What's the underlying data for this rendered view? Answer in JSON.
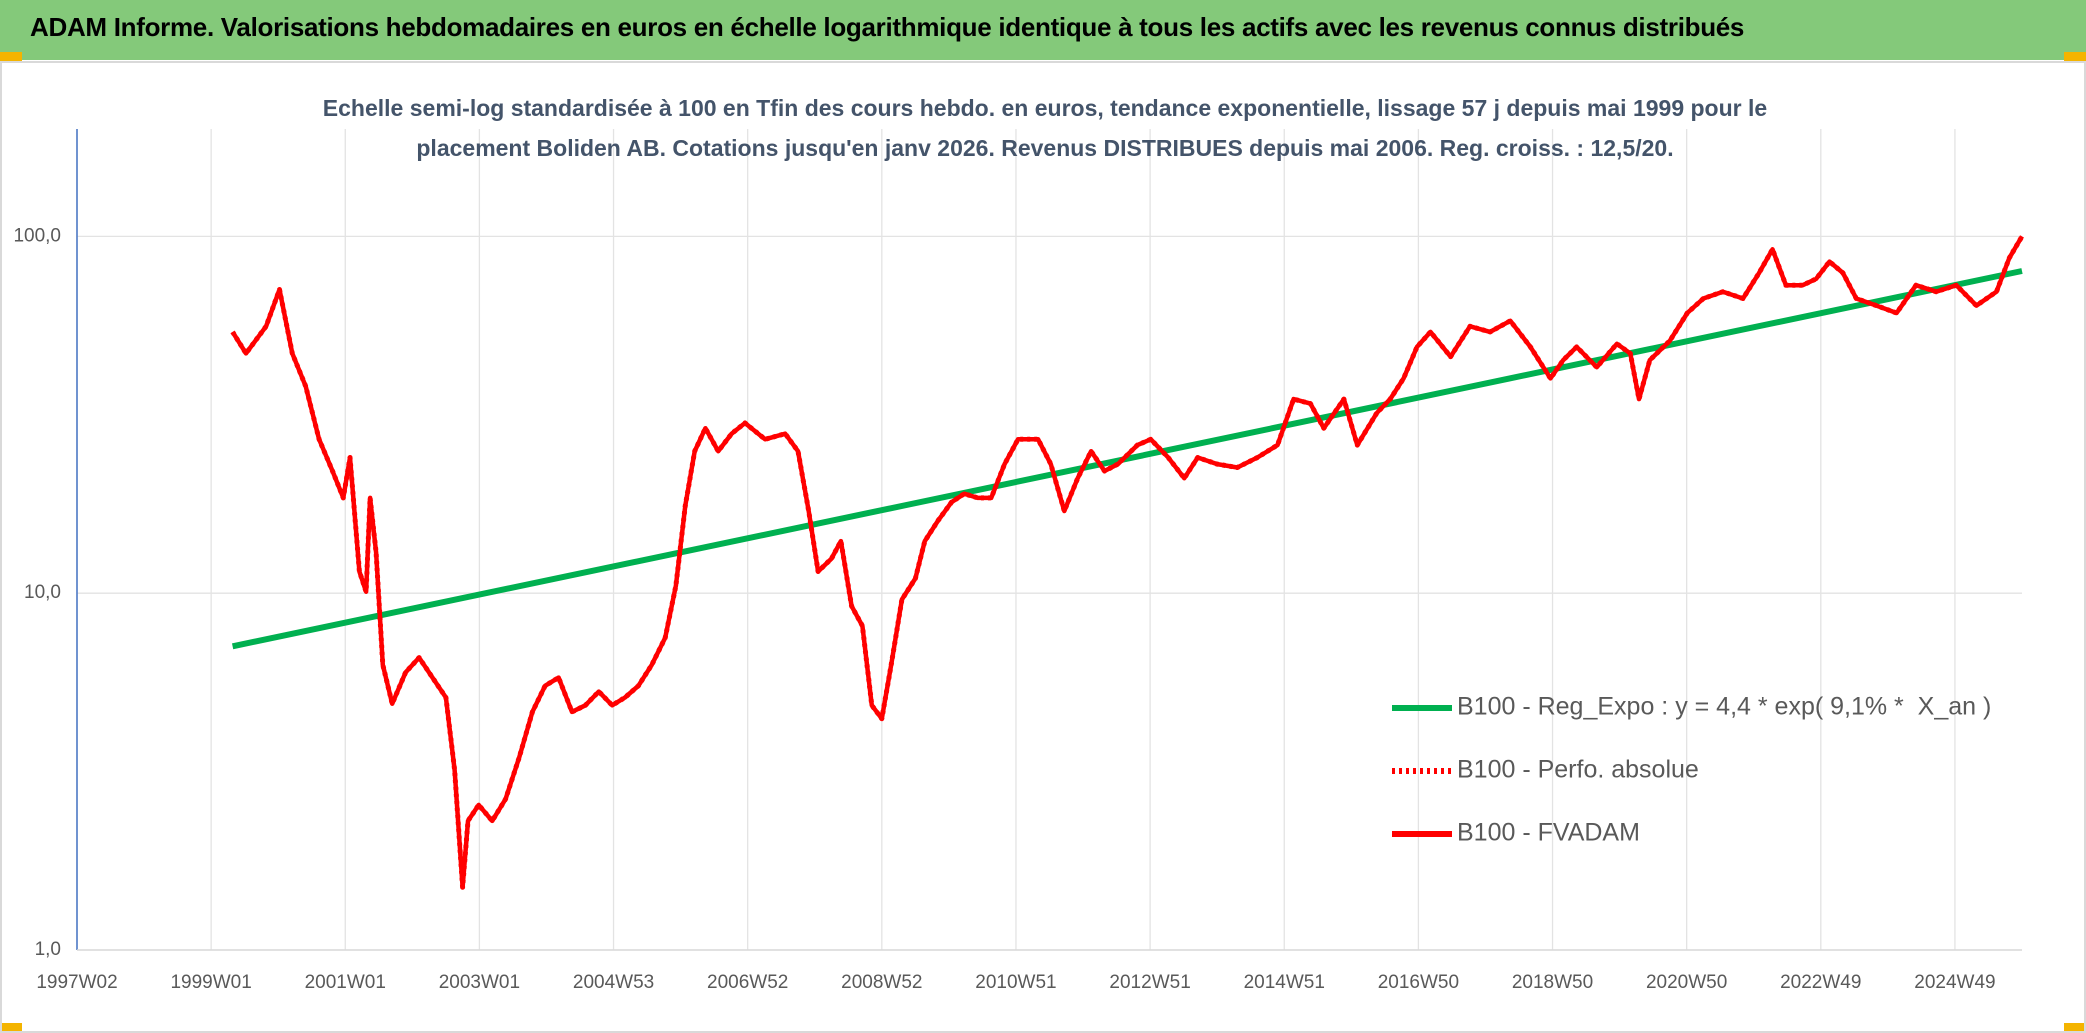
{
  "chart_data": {
    "type": "line",
    "title": "ADAM Informe. Valorisations hebdomadaires en euros en échelle logarithmique identique à tous les actifs avec les revenus connus distribués",
    "subtitle": "Echelle semi-log standardisée à 100 en Tfin des cours hebdo. en euros, tendance exponentielle, lissage 57 j depuis mai 1999 pour le placement Boliden AB. Cotations jusqu'en janv 2026. Revenus DISTRIBUES depuis mai 2006. Reg. croiss. : 12,5/20.",
    "log_scale": true,
    "grid": true,
    "legend": "right",
    "xlim": [
      1997,
      2026
    ],
    "xticks": [
      {
        "value": 1997.0,
        "label": "1997W02"
      },
      {
        "value": 1999.0,
        "label": "1999W01"
      },
      {
        "value": 2001.0,
        "label": "2001W01"
      },
      {
        "value": 2003.0,
        "label": "2003W01"
      },
      {
        "value": 2005.0,
        "label": "2004W53"
      },
      {
        "value": 2007.0,
        "label": "2006W52"
      },
      {
        "value": 2009.0,
        "label": "2008W52"
      },
      {
        "value": 2011.0,
        "label": "2010W51"
      },
      {
        "value": 2013.0,
        "label": "2012W51"
      },
      {
        "value": 2015.0,
        "label": "2014W51"
      },
      {
        "value": 2017.0,
        "label": "2016W50"
      },
      {
        "value": 2019.0,
        "label": "2018W50"
      },
      {
        "value": 2021.0,
        "label": "2020W50"
      },
      {
        "value": 2023.0,
        "label": "2022W49"
      },
      {
        "value": 2025.0,
        "label": "2024W49"
      }
    ],
    "ylim": [
      1,
      200
    ],
    "yticks": [
      {
        "value": 1,
        "label": "1,0"
      },
      {
        "value": 10,
        "label": "10,0"
      },
      {
        "value": 100,
        "label": "100,0"
      }
    ],
    "series": [
      {
        "name": "B100 - Reg_Expo : y = 4,4 * exp( 9,1% *  X_an )",
        "color": "#00b050",
        "style": "solid",
        "x": [
          1999.32,
          2026.0
        ],
        "values": [
          7.1,
          80
        ]
      },
      {
        "name": "B100 - Perfo. absolue",
        "color": "#ff0000",
        "style": "dotted",
        "x": [
          1999.32,
          1999.52,
          1999.82,
          2000.02,
          2000.21,
          2000.41,
          2000.61,
          2000.81,
          2000.97,
          2001.07,
          2001.21,
          2001.31,
          2001.37,
          2001.46,
          2001.56,
          2001.7,
          2001.9,
          2002.1,
          2002.3,
          2002.5,
          2002.63,
          2002.75,
          2002.83,
          2002.99,
          2003.19,
          2003.39,
          2003.59,
          2003.79,
          2003.98,
          2004.18,
          2004.38,
          2004.58,
          2004.78,
          2004.98,
          2005.17,
          2005.37,
          2005.57,
          2005.77,
          2005.93,
          2006.07,
          2006.21,
          2006.37,
          2006.56,
          2006.76,
          2006.96,
          2007.26,
          2007.56,
          2007.75,
          2007.91,
          2008.05,
          2008.25,
          2008.39,
          2008.55,
          2008.71,
          2008.85,
          2009.0,
          2009.14,
          2009.3,
          2009.5,
          2009.64,
          2009.84,
          2010.04,
          2010.23,
          2010.43,
          2010.63,
          2010.83,
          2011.03,
          2011.33,
          2011.52,
          2011.72,
          2011.92,
          2012.12,
          2012.32,
          2012.52,
          2012.81,
          2013.01,
          2013.27,
          2013.51,
          2013.71,
          2014.0,
          2014.3,
          2014.6,
          2014.9,
          2015.14,
          2015.39,
          2015.59,
          2015.89,
          2016.09,
          2016.38,
          2016.58,
          2016.78,
          2016.98,
          2017.18,
          2017.48,
          2017.77,
          2018.07,
          2018.37,
          2018.67,
          2018.97,
          2019.16,
          2019.36,
          2019.66,
          2019.96,
          2020.16,
          2020.29,
          2020.45,
          2020.75,
          2021.01,
          2021.25,
          2021.54,
          2021.84,
          2022.08,
          2022.28,
          2022.48,
          2022.73,
          2022.93,
          2023.13,
          2023.33,
          2023.53,
          2023.83,
          2024.13,
          2024.42,
          2024.72,
          2025.02,
          2025.32,
          2025.62,
          2025.81,
          2026.0
        ],
        "values": [
          54,
          47,
          56,
          71,
          47,
          38,
          27,
          22,
          18.5,
          24,
          11.5,
          10.1,
          18.5,
          13,
          6.3,
          4.9,
          6,
          6.6,
          5.8,
          5.1,
          3.2,
          1.5,
          2.3,
          2.55,
          2.3,
          2.65,
          3.45,
          4.65,
          5.5,
          5.8,
          4.65,
          4.85,
          5.3,
          4.85,
          5.1,
          5.5,
          6.3,
          7.5,
          10.5,
          17.6,
          25,
          29,
          25,
          28,
          30,
          27,
          28,
          25,
          17,
          11.5,
          12.5,
          14,
          9.2,
          8.1,
          4.85,
          4.45,
          6.3,
          9.6,
          11,
          14,
          16,
          18,
          19,
          18.5,
          18.5,
          23,
          27,
          27,
          23,
          17,
          21,
          25,
          22,
          23,
          26,
          27,
          24,
          21,
          24,
          23,
          22.5,
          24,
          26,
          35,
          34,
          29,
          35,
          26,
          32,
          35,
          40,
          49,
          54,
          46,
          56,
          54,
          58,
          49,
          40,
          45,
          49,
          43,
          50,
          47,
          35,
          45,
          51,
          61,
          67,
          70,
          67,
          79,
          92,
          73,
          73,
          76,
          85,
          79,
          67,
          64,
          61,
          73,
          70,
          73,
          64,
          70,
          87,
          100
        ]
      },
      {
        "name": "B100 - FVADAM",
        "color": "#ff0000",
        "style": "solid",
        "x": [
          1999.32,
          1999.52,
          1999.82,
          2000.02,
          2000.21,
          2000.41,
          2000.61,
          2000.81,
          2000.97,
          2001.07,
          2001.21,
          2001.31,
          2001.37,
          2001.46,
          2001.56,
          2001.7,
          2001.9,
          2002.1,
          2002.3,
          2002.5,
          2002.63,
          2002.75,
          2002.83,
          2002.99,
          2003.19,
          2003.39,
          2003.59,
          2003.79,
          2003.98,
          2004.18,
          2004.38,
          2004.58,
          2004.78,
          2004.98,
          2005.17,
          2005.37,
          2005.57,
          2005.77,
          2005.93,
          2006.07,
          2006.21,
          2006.37,
          2006.56,
          2006.76,
          2006.96,
          2007.26,
          2007.56,
          2007.75,
          2007.91,
          2008.05,
          2008.25,
          2008.39,
          2008.55,
          2008.71,
          2008.85,
          2009.0,
          2009.14,
          2009.3,
          2009.5,
          2009.64,
          2009.84,
          2010.04,
          2010.23,
          2010.43,
          2010.63,
          2010.83,
          2011.03,
          2011.33,
          2011.52,
          2011.72,
          2011.92,
          2012.12,
          2012.32,
          2012.52,
          2012.81,
          2013.01,
          2013.27,
          2013.51,
          2013.71,
          2014.0,
          2014.3,
          2014.6,
          2014.9,
          2015.14,
          2015.39,
          2015.59,
          2015.89,
          2016.09,
          2016.38,
          2016.58,
          2016.78,
          2016.98,
          2017.18,
          2017.48,
          2017.77,
          2018.07,
          2018.37,
          2018.67,
          2018.97,
          2019.16,
          2019.36,
          2019.66,
          2019.96,
          2020.16,
          2020.29,
          2020.45,
          2020.75,
          2021.01,
          2021.25,
          2021.54,
          2021.84,
          2022.08,
          2022.28,
          2022.48,
          2022.73,
          2022.93,
          2023.13,
          2023.33,
          2023.53,
          2023.83,
          2024.13,
          2024.42,
          2024.72,
          2025.02,
          2025.32,
          2025.62,
          2025.81,
          2026.0
        ],
        "values": [
          54,
          47,
          56,
          71,
          47,
          38,
          27,
          22,
          18.5,
          24,
          11.5,
          10.1,
          18.5,
          13,
          6.3,
          4.9,
          6,
          6.6,
          5.8,
          5.1,
          3.2,
          1.5,
          2.3,
          2.55,
          2.3,
          2.65,
          3.45,
          4.65,
          5.5,
          5.8,
          4.65,
          4.85,
          5.3,
          4.85,
          5.1,
          5.5,
          6.3,
          7.5,
          10.5,
          17.6,
          25,
          29,
          25,
          28,
          30,
          27,
          28,
          25,
          17,
          11.5,
          12.5,
          14,
          9.2,
          8.1,
          4.85,
          4.45,
          6.3,
          9.6,
          11,
          14,
          16,
          18,
          19,
          18.5,
          18.5,
          23,
          27,
          27,
          23,
          17,
          21,
          25,
          22,
          23,
          26,
          27,
          24,
          21,
          24,
          23,
          22.5,
          24,
          26,
          35,
          34,
          29,
          35,
          26,
          32,
          35,
          40,
          49,
          54,
          46,
          56,
          54,
          58,
          49,
          40,
          45,
          49,
          43,
          50,
          47,
          35,
          45,
          51,
          61,
          67,
          70,
          67,
          79,
          92,
          73,
          73,
          76,
          85,
          79,
          67,
          64,
          61,
          73,
          70,
          73,
          64,
          70,
          87,
          100
        ]
      }
    ]
  }
}
